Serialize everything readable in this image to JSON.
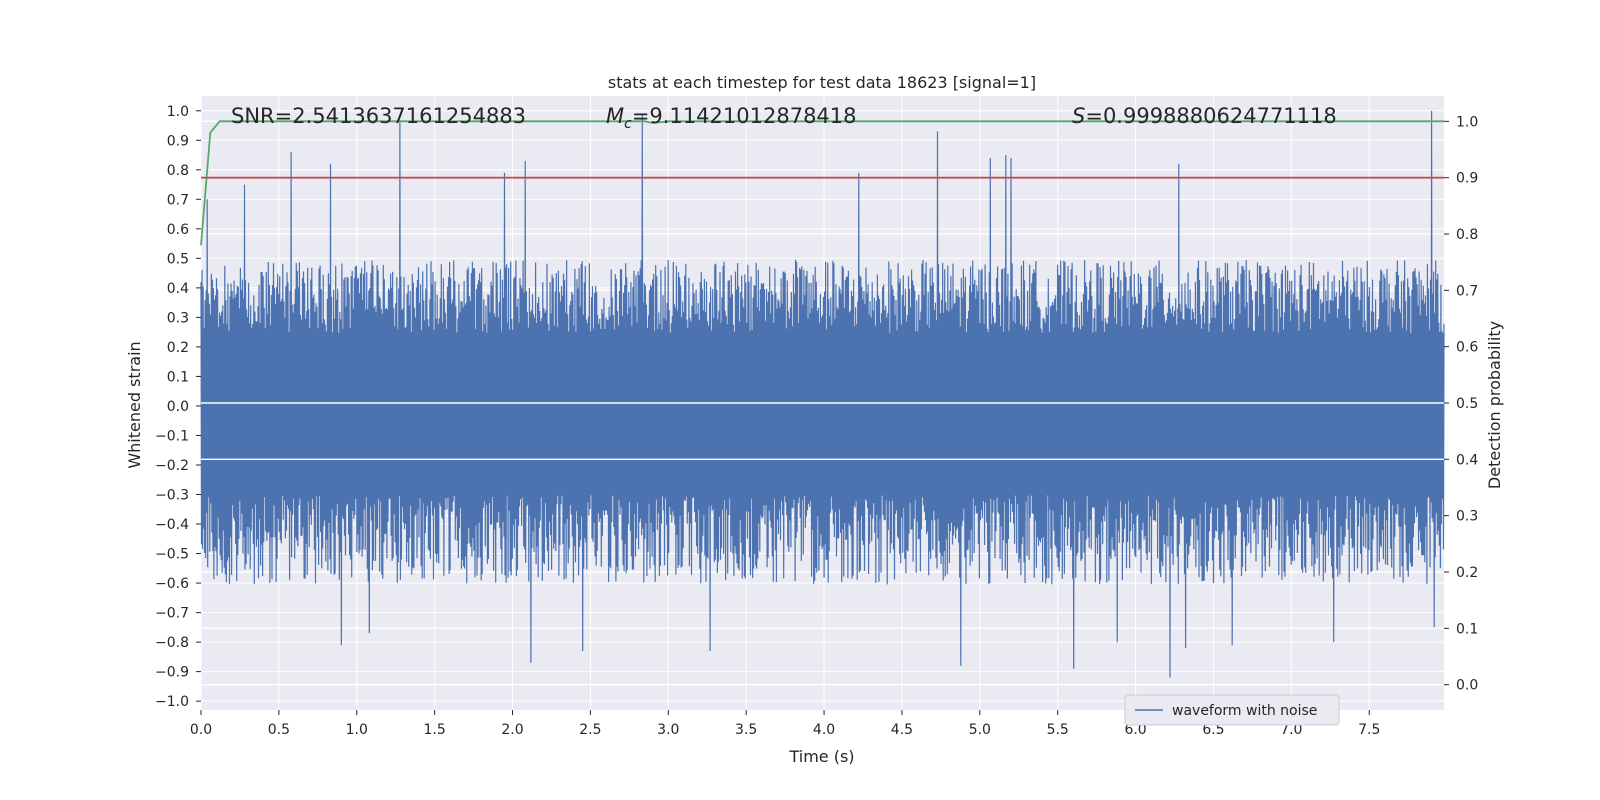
{
  "chart_data": {
    "type": "line",
    "title": "stats at each timestep for test data 18623 [signal=1]",
    "xlabel": "Time (s)",
    "ylabel": "Whitened strain",
    "y2label": "Detection probability",
    "xlim": [
      0.0,
      7.98
    ],
    "ylim": [
      -1.03,
      1.05
    ],
    "y2lim": [
      -0.045,
      1.045
    ],
    "x_ticks": [
      "0.0",
      "0.5",
      "1.0",
      "1.5",
      "2.0",
      "2.5",
      "3.0",
      "3.5",
      "4.0",
      "4.5",
      "5.0",
      "5.5",
      "6.0",
      "6.5",
      "7.0",
      "7.5"
    ],
    "y_ticks": [
      "1.0",
      "0.9",
      "0.8",
      "0.7",
      "0.6",
      "0.5",
      "0.4",
      "0.3",
      "0.2",
      "0.1",
      "0.0",
      "−0.1",
      "−0.2",
      "−0.3",
      "−0.4",
      "−0.5",
      "−0.6",
      "−0.7",
      "−0.8",
      "−0.9",
      "−1.0"
    ],
    "y2_ticks": [
      "1.0",
      "0.9",
      "0.8",
      "0.7",
      "0.6",
      "0.5",
      "0.4",
      "0.3",
      "0.2",
      "0.1",
      "0.0"
    ],
    "grid": true,
    "legend_position": "lower-right",
    "annotations": {
      "snr": "SNR=2.5413637161254883",
      "mc_symbol": "M",
      "mc_subscript": "c",
      "mc_value": "=9.11421012878418",
      "s_symbol": "S",
      "s_value": "=0.9998880624771118"
    },
    "series": [
      {
        "name": "waveform with noise",
        "axis": "left",
        "color": "#4c72b0",
        "envelope_typical": [
          -0.55,
          0.45
        ],
        "peaks_x": [
          0.04,
          0.28,
          0.58,
          0.83,
          1.28,
          1.95,
          2.08,
          2.83,
          4.22,
          4.73,
          5.07,
          5.17,
          5.2,
          6.28,
          7.9
        ],
        "peaks_y": [
          0.7,
          0.75,
          0.86,
          0.82,
          0.96,
          0.79,
          0.83,
          0.99,
          0.79,
          0.93,
          0.84,
          0.85,
          0.84,
          0.82,
          1.0
        ],
        "troughs_x": [
          0.9,
          1.08,
          2.12,
          2.45,
          3.27,
          4.88,
          5.6,
          5.88,
          6.22,
          6.32,
          6.62,
          7.27,
          7.92
        ],
        "troughs_y": [
          -0.81,
          -0.77,
          -0.87,
          -0.83,
          -0.83,
          -0.88,
          -0.89,
          -0.8,
          -0.92,
          -0.82,
          -0.81,
          -0.8,
          -0.75
        ]
      },
      {
        "name": "",
        "axis": "right",
        "color": "#55a868",
        "x": [
          0.0,
          0.06,
          0.12,
          2.85,
          2.9,
          3.0,
          7.98
        ],
        "y": [
          0.78,
          0.98,
          1.0,
          1.0,
          0.997,
          1.0,
          1.0
        ]
      },
      {
        "name": "",
        "axis": "right",
        "color": "#c44e52",
        "x": [
          0.0,
          7.98
        ],
        "y": [
          0.9,
          0.9
        ]
      }
    ]
  }
}
